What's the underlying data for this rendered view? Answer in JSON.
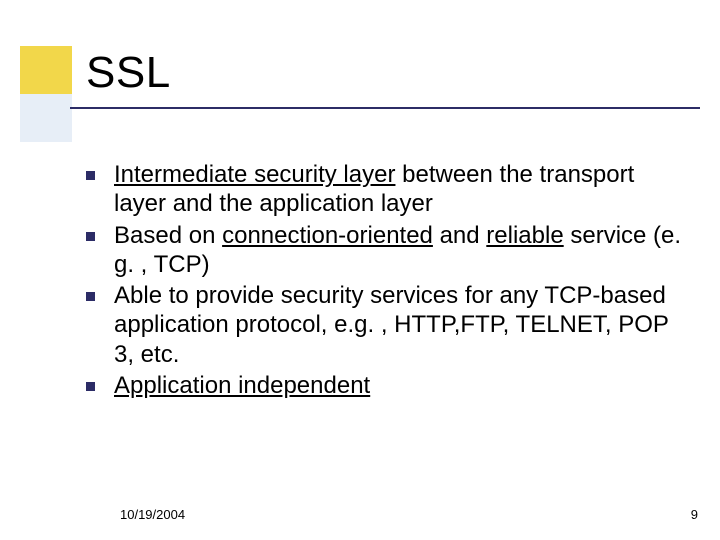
{
  "colors": {
    "accent_top": "#f2d74a",
    "accent_bottom": "#e7eef7",
    "rule": "#2c2c66",
    "bullet": "#2c2c66",
    "background": "#ffffff",
    "text": "#000000"
  },
  "typography": {
    "title_fontsize": 44,
    "body_fontsize": 24,
    "footer_fontsize": 13,
    "font_family": "Verdana"
  },
  "title": "SSL",
  "bullets": {
    "item1": {
      "seg1": "Intermediate security layer",
      "seg2": " between the transport layer and the application layer"
    },
    "item2": {
      "seg1": "Based on ",
      "seg2": "connection-oriented",
      "seg3": " and ",
      "seg4": "reliable",
      "seg5": " service (e. g. , TCP)"
    },
    "item3": {
      "seg1": "Able to provide security services for any TCP-based application protocol, e.g. , HTTP,FTP, TELNET, POP 3, etc."
    },
    "item4": {
      "seg1": "Application independent"
    }
  },
  "footer": {
    "date": "10/19/2004",
    "page": "9"
  }
}
